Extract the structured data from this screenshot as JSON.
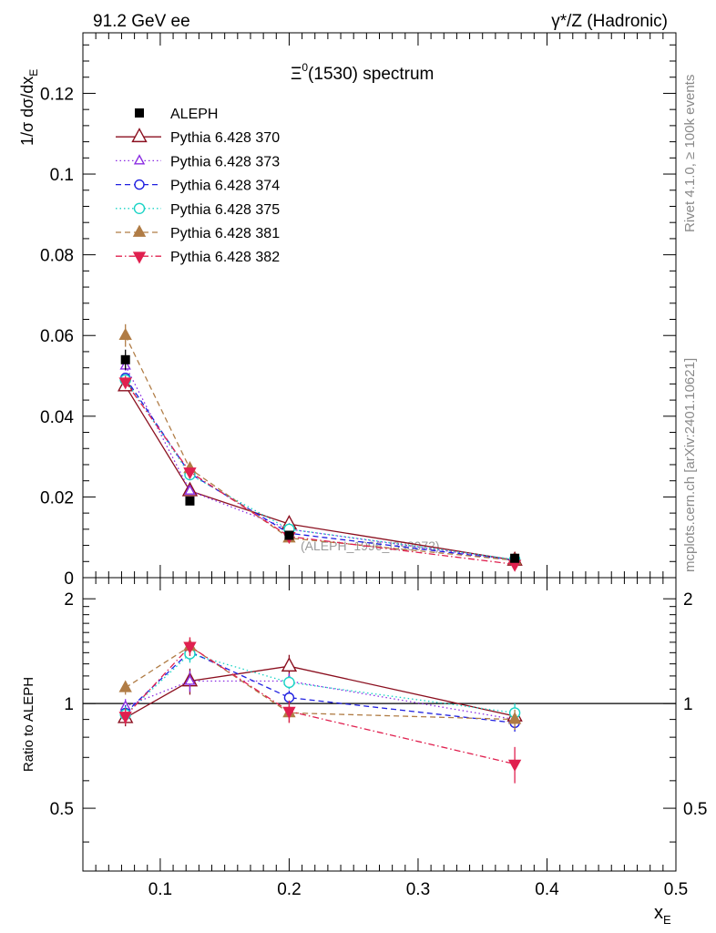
{
  "header": {
    "left": "91.2 GeV ee",
    "right": "γ*/Z (Hadronic)"
  },
  "side_labels": {
    "rivet": "Rivet 4.1.0, ≥ 100k events",
    "mcplots": "mcplots.cern.ch [arXiv:2401.10621]"
  },
  "watermark": "(ALEPH_1996_I398072)",
  "colors": {
    "ALEPH": "#000000",
    "Pythia 6.428 370": "#8b0f1f",
    "Pythia 6.428 373": "#8a2be2",
    "Pythia 6.428 374": "#1f1fe0",
    "Pythia 6.428 375": "#19d3c5",
    "Pythia 6.428 381": "#b07c45",
    "Pythia 6.428 382": "#e0204f"
  },
  "chart_data": [
    {
      "type": "scatter",
      "title": "Ξ0(1530) spectrum",
      "title_main": "Ξ",
      "title_sup": "0",
      "title_rest": "(1530) spectrum",
      "ylabel": "1/σ  dσ/dxE",
      "ylabel_main": "1/σ  dσ/dx",
      "ylabel_sub": "E",
      "xlim": [
        0.04,
        0.5
      ],
      "ylim": [
        0,
        0.135
      ],
      "yticks": [
        0,
        0.02,
        0.04,
        0.06,
        0.08,
        0.1,
        0.12
      ],
      "ytick_labels": [
        "0",
        "0.02",
        "0.04",
        "0.06",
        "0.08",
        "0.1",
        "0.12"
      ],
      "legend_position": "top-left",
      "x": [
        0.073,
        0.123,
        0.2,
        0.375
      ],
      "series": [
        {
          "name": "ALEPH",
          "marker": "square-filled",
          "line": "none",
          "values": [
            0.054,
            0.019,
            0.0105,
            0.0048
          ],
          "errors": [
            0.0025,
            0.001,
            0.0008,
            0.0004
          ]
        },
        {
          "name": "Pythia 6.428 370",
          "marker": "triangle-open",
          "line": "solid",
          "values": [
            0.0475,
            0.0215,
            0.0133,
            0.0043
          ],
          "errors": [
            0.0012,
            0.0008,
            0.0005,
            0.0003
          ]
        },
        {
          "name": "Pythia 6.428 373",
          "marker": "triangle-open",
          "line": "dotted",
          "values": [
            0.0525,
            0.0215,
            0.012,
            0.0043
          ],
          "errors": [
            0.0012,
            0.0008,
            0.0005,
            0.0003
          ]
        },
        {
          "name": "Pythia 6.428 374",
          "marker": "circle-open",
          "line": "dashed",
          "values": [
            0.0495,
            0.0258,
            0.011,
            0.0043
          ],
          "errors": [
            0.0012,
            0.0008,
            0.0005,
            0.0003
          ]
        },
        {
          "name": "Pythia 6.428 375",
          "marker": "circle-open",
          "line": "dotted",
          "values": [
            0.049,
            0.0255,
            0.012,
            0.0045
          ],
          "errors": [
            0.0012,
            0.0008,
            0.0005,
            0.0003
          ]
        },
        {
          "name": "Pythia 6.428 381",
          "marker": "triangle-filled",
          "line": "dashed",
          "values": [
            0.06,
            0.027,
            0.0098,
            0.0043
          ],
          "errors": [
            0.0028,
            0.0012,
            0.0005,
            0.0003
          ]
        },
        {
          "name": "Pythia 6.428 382",
          "marker": "triangle-down-filled",
          "line": "dashdot",
          "values": [
            0.0485,
            0.0262,
            0.0102,
            0.0033
          ],
          "errors": [
            0.0015,
            0.001,
            0.0005,
            0.0003
          ]
        }
      ]
    },
    {
      "type": "scatter",
      "title": "",
      "ylabel": "Ratio to ALEPH",
      "xlabel": "xE",
      "xlabel_main": "x",
      "xlabel_sub": "E",
      "xlim": [
        0.04,
        0.5
      ],
      "ylim": [
        0.33,
        2.3
      ],
      "yscale": "log",
      "xticks": [
        0.1,
        0.2,
        0.3,
        0.4,
        0.5
      ],
      "xtick_labels": [
        "0.1",
        "0.2",
        "0.3",
        "0.4",
        "0.5"
      ],
      "yticks": [
        0.5,
        1,
        2
      ],
      "ytick_labels": [
        "0.5",
        "1",
        "2"
      ],
      "reference_line": 1,
      "x": [
        0.073,
        0.123,
        0.2,
        0.375
      ],
      "series": [
        {
          "name": "Pythia 6.428 370",
          "values": [
            0.91,
            1.16,
            1.28,
            0.92
          ],
          "errors": [
            0.05,
            0.1,
            0.1,
            0.05
          ]
        },
        {
          "name": "Pythia 6.428 373",
          "values": [
            0.98,
            1.16,
            1.16,
            0.9
          ],
          "errors": [
            0.05,
            0.08,
            0.06,
            0.05
          ]
        },
        {
          "name": "Pythia 6.428 374",
          "values": [
            0.94,
            1.41,
            1.04,
            0.88
          ],
          "errors": [
            0.05,
            0.08,
            0.05,
            0.05
          ]
        },
        {
          "name": "Pythia 6.428 375",
          "values": [
            0.93,
            1.39,
            1.15,
            0.94
          ],
          "errors": [
            0.05,
            0.08,
            0.05,
            0.06
          ]
        },
        {
          "name": "Pythia 6.428 381",
          "values": [
            1.11,
            1.46,
            0.94,
            0.9
          ],
          "errors": [
            0.05,
            0.09,
            0.06,
            0.06
          ]
        },
        {
          "name": "Pythia 6.428 382",
          "values": [
            0.92,
            1.46,
            0.95,
            0.67
          ],
          "errors": [
            0.05,
            0.09,
            0.07,
            0.08
          ]
        }
      ]
    }
  ]
}
